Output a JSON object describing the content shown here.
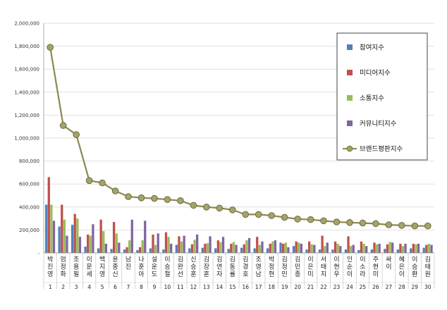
{
  "chart_data": {
    "type": "bar",
    "ylim": [
      0,
      2000000
    ],
    "y_ticks": [
      "-",
      "200,000",
      "400,000",
      "600,000",
      "800,000",
      "1,000,000",
      "1,200,000",
      "1,400,000",
      "1,600,000",
      "1,800,000",
      "2,000,000"
    ],
    "grid": true,
    "legend_position": "top-right",
    "categories": [
      "박진영",
      "엄정화",
      "조용필",
      "이문세",
      "백지영",
      "윤종신",
      "남진",
      "나훈아",
      "설운도",
      "이승철",
      "김완선",
      "신승훈",
      "김장훈",
      "김연자",
      "김동률",
      "김경호",
      "조영남",
      "박정현",
      "김정민",
      "김민종",
      "이은미",
      "서태지",
      "이현우",
      "인순이",
      "이소라",
      "주현미",
      "싸이",
      "혜은이",
      "이승환",
      "김태원"
    ],
    "ranks": [
      "1",
      "2",
      "3",
      "4",
      "5",
      "6",
      "7",
      "8",
      "9",
      "10",
      "11",
      "12",
      "13",
      "14",
      "15",
      "16",
      "17",
      "18",
      "19",
      "20",
      "21",
      "22",
      "23",
      "24",
      "25",
      "26",
      "27",
      "28",
      "29",
      "30"
    ],
    "series": [
      {
        "name": "참여지수",
        "color": "#4f81bd",
        "values": [
          420000,
          230000,
          245000,
          55000,
          40000,
          35000,
          30000,
          25000,
          40000,
          30000,
          70000,
          40000,
          45000,
          40000,
          35000,
          45000,
          40000,
          40000,
          90000,
          60000,
          30000,
          30000,
          30000,
          30000,
          25000,
          30000,
          35000,
          30000,
          40000,
          45000
        ]
      },
      {
        "name": "미디어지수",
        "color": "#c0504d",
        "values": [
          660000,
          420000,
          340000,
          160000,
          290000,
          270000,
          50000,
          50000,
          160000,
          180000,
          145000,
          75000,
          80000,
          110000,
          80000,
          75000,
          140000,
          80000,
          80000,
          100000,
          100000,
          150000,
          100000,
          145000,
          100000,
          90000,
          75000,
          80000,
          80000,
          70000
        ]
      },
      {
        "name": "소통지수",
        "color": "#9bbb59",
        "values": [
          420000,
          290000,
          300000,
          150000,
          190000,
          170000,
          110000,
          110000,
          70000,
          140000,
          100000,
          115000,
          85000,
          95000,
          95000,
          110000,
          70000,
          100000,
          90000,
          90000,
          75000,
          60000,
          80000,
          60000,
          80000,
          75000,
          95000,
          60000,
          75000,
          80000
        ]
      },
      {
        "name": "커뮤니티지수",
        "color": "#8064a2",
        "values": [
          280000,
          150000,
          140000,
          250000,
          80000,
          90000,
          290000,
          280000,
          170000,
          80000,
          150000,
          160000,
          145000,
          140000,
          70000,
          130000,
          100000,
          110000,
          50000,
          80000,
          70000,
          90000,
          60000,
          70000,
          60000,
          80000,
          90000,
          80000,
          80000,
          70000
        ]
      },
      {
        "name": "브랜드평판지수",
        "color": "#8a8a52",
        "values": [
          1790000,
          1110000,
          1030000,
          630000,
          610000,
          540000,
          490000,
          480000,
          475000,
          465000,
          455000,
          415000,
          400000,
          390000,
          375000,
          335000,
          335000,
          325000,
          310000,
          295000,
          290000,
          280000,
          270000,
          265000,
          260000,
          255000,
          245000,
          240000,
          235000,
          235000
        ]
      }
    ]
  }
}
